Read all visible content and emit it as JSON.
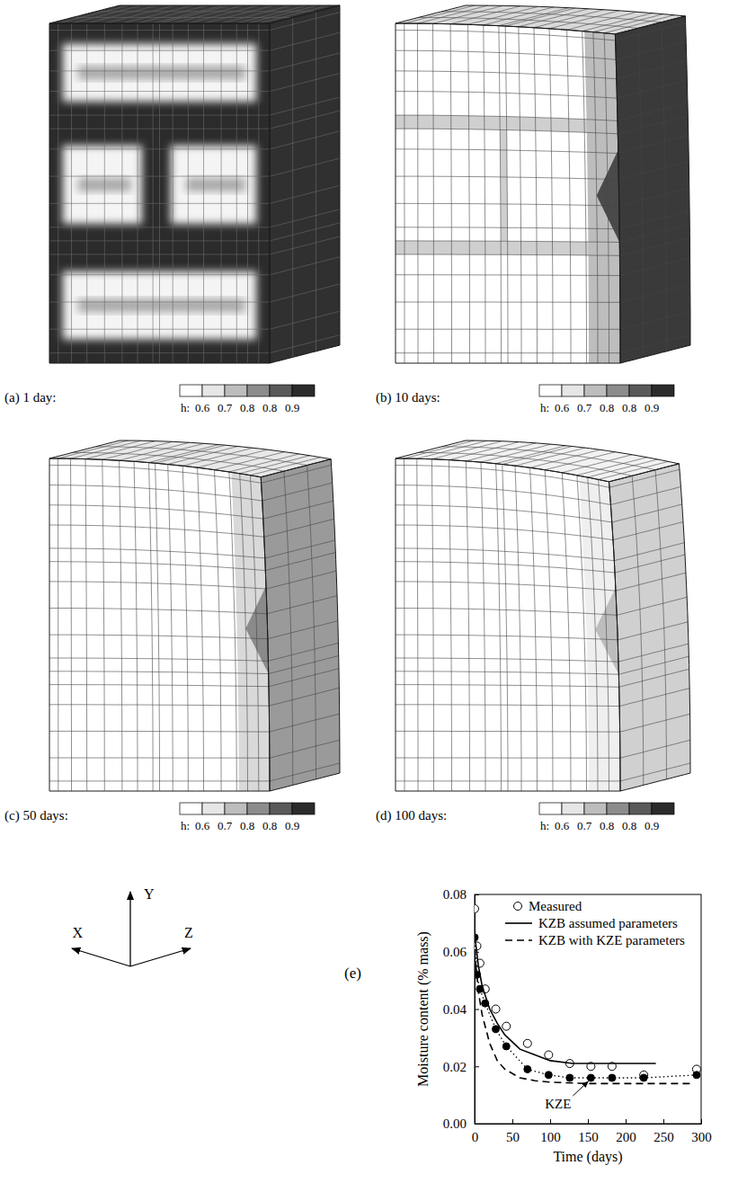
{
  "panels": [
    {
      "label": "(a) 1 day:",
      "legend": {
        "title": "h:",
        "ticks": [
          0.6,
          0.7,
          0.8,
          0.8,
          0.9
        ]
      }
    },
    {
      "label": "(b) 10 days:",
      "legend": {
        "title": "h:",
        "ticks": [
          0.6,
          0.7,
          0.8,
          0.8,
          0.9
        ]
      }
    },
    {
      "label": "(c) 50 days:",
      "legend": {
        "title": "h:",
        "ticks": [
          0.6,
          0.7,
          0.8,
          0.8,
          0.9
        ]
      }
    },
    {
      "label": "(d) 100 days:",
      "legend": {
        "title": "h:",
        "ticks": [
          0.6,
          0.7,
          0.8,
          0.8,
          0.9
        ]
      }
    }
  ],
  "axes_triad": [
    "X",
    "Y",
    "Z"
  ],
  "chart_data": {
    "type": "line",
    "panel_label": "(e)",
    "xlabel": "Time (days)",
    "ylabel": "Moisture content (% mass)",
    "xlim": [
      0,
      300
    ],
    "ylim": [
      0,
      0.08
    ],
    "xticks": [
      0,
      50,
      100,
      150,
      200,
      250,
      300
    ],
    "yticks": [
      {
        "value": 0,
        "label": "0.00"
      },
      0.02,
      0.04,
      0.06,
      0.08
    ],
    "legend": "top",
    "series": [
      {
        "name": "Measured",
        "type": "scatter",
        "marker": "open-circle",
        "color": "#000000",
        "x": [
          0,
          3,
          7,
          14,
          28,
          42,
          70,
          98,
          126,
          154,
          182,
          224,
          294
        ],
        "values": [
          0.075,
          0.062,
          0.056,
          0.047,
          0.04,
          0.034,
          0.028,
          0.024,
          0.021,
          0.02,
          0.02,
          0.017,
          0.019
        ]
      },
      {
        "name": "KZB assumed parameters",
        "type": "line",
        "line_style": "solid",
        "color": "#000000",
        "x": [
          0,
          5,
          10,
          20,
          30,
          40,
          60,
          80,
          100,
          130,
          160,
          200,
          240
        ],
        "values": [
          0.066,
          0.055,
          0.048,
          0.04,
          0.035,
          0.031,
          0.026,
          0.024,
          0.022,
          0.021,
          0.021,
          0.021,
          0.021
        ]
      },
      {
        "name": "KZB with KZE parameters",
        "type": "line",
        "line_style": "dashed",
        "color": "#000000",
        "x": [
          0,
          5,
          10,
          20,
          30,
          40,
          60,
          80,
          100,
          150,
          200,
          250,
          290
        ],
        "values": [
          0.06,
          0.046,
          0.038,
          0.028,
          0.022,
          0.019,
          0.016,
          0.015,
          0.0145,
          0.014,
          0.014,
          0.014,
          0.014
        ]
      },
      {
        "name": "KZE",
        "type": "line",
        "marker": "filled-circle",
        "line_style": "dotted",
        "color": "#000000",
        "x": [
          0,
          3,
          7,
          14,
          28,
          42,
          70,
          98,
          126,
          154,
          182,
          224,
          294
        ],
        "values": [
          0.065,
          0.052,
          0.047,
          0.042,
          0.033,
          0.027,
          0.019,
          0.017,
          0.016,
          0.016,
          0.016,
          0.016,
          0.017
        ]
      }
    ]
  }
}
